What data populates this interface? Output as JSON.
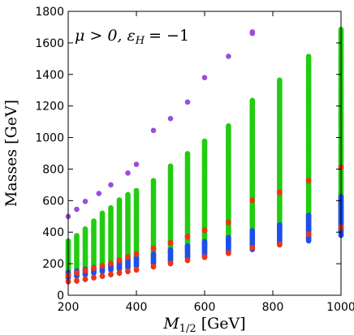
{
  "chart_data": {
    "type": "scatter",
    "title": "",
    "xlabel_main": "M",
    "xlabel_sub": "1/2",
    "xlabel_unit": "[GeV]",
    "ylabel": "Masses [GeV]",
    "annotation": "μ > 0, ε",
    "annotation_sub": "H",
    "annotation_rhs": "= −1",
    "xlim": [
      200,
      1000
    ],
    "ylim": [
      0,
      1800
    ],
    "xticks": [
      200,
      400,
      600,
      800,
      1000
    ],
    "yticks": [
      0,
      200,
      400,
      600,
      800,
      1000,
      1200,
      1400,
      1600,
      1800
    ],
    "grid": false,
    "x_values": [
      200,
      225,
      250,
      275,
      300,
      325,
      350,
      375,
      400,
      450,
      500,
      550,
      600,
      670,
      740,
      820,
      905,
      1000
    ],
    "colors": {
      "purple": "#9b4ddb",
      "green": "#22cc11",
      "blue": "#1f4fe8",
      "red": "#e8361b"
    },
    "series": [
      {
        "name": "",
        "color": "purple",
        "points": [
          [
            200,
            500
          ],
          [
            225,
            545
          ],
          [
            250,
            595
          ],
          [
            290,
            645
          ],
          [
            325,
            700
          ],
          [
            375,
            775
          ],
          [
            400,
            830
          ],
          [
            450,
            1045
          ],
          [
            500,
            1120
          ],
          [
            550,
            1225
          ],
          [
            600,
            1380
          ],
          [
            670,
            1515
          ],
          [
            740,
            1660
          ],
          [
            740,
            1670
          ]
        ]
      }
    ],
    "vertical_bands": [
      {
        "x": 200,
        "green": [
          160,
          350
        ],
        "blue": [
          110,
          150
        ],
        "red": [
          [
            85,
            90
          ],
          [
            125,
            130
          ]
        ]
      },
      {
        "x": 225,
        "green": [
          170,
          380
        ],
        "blue": [
          120,
          160
        ],
        "red": [
          [
            90,
            95
          ],
          [
            140,
            145
          ]
        ]
      },
      {
        "x": 250,
        "green": [
          180,
          420
        ],
        "blue": [
          130,
          170
        ],
        "red": [
          [
            100,
            105
          ],
          [
            155,
            160
          ]
        ]
      },
      {
        "x": 275,
        "green": [
          190,
          470
        ],
        "blue": [
          140,
          180
        ],
        "red": [
          [
            110,
            115
          ],
          [
            170,
            175
          ]
        ]
      },
      {
        "x": 300,
        "green": [
          200,
          520
        ],
        "blue": [
          150,
          190
        ],
        "red": [
          [
            120,
            125
          ],
          [
            185,
            190
          ]
        ]
      },
      {
        "x": 325,
        "green": [
          210,
          560
        ],
        "blue": [
          160,
          200
        ],
        "red": [
          [
            130,
            135
          ],
          [
            200,
            205
          ]
        ]
      },
      {
        "x": 350,
        "green": [
          220,
          610
        ],
        "blue": [
          165,
          215
        ],
        "red": [
          [
            140,
            145
          ],
          [
            220,
            225
          ]
        ]
      },
      {
        "x": 375,
        "green": [
          230,
          640
        ],
        "blue": [
          175,
          225
        ],
        "red": [
          [
            150,
            155
          ],
          [
            240,
            245
          ]
        ]
      },
      {
        "x": 400,
        "green": [
          240,
          670
        ],
        "blue": [
          185,
          240
        ],
        "red": [
          [
            160,
            165
          ],
          [
            260,
            265
          ]
        ]
      },
      {
        "x": 450,
        "green": [
          255,
          730
        ],
        "blue": [
          200,
          265
        ],
        "red": [
          [
            180,
            185
          ],
          [
            295,
            300
          ]
        ]
      },
      {
        "x": 500,
        "green": [
          275,
          820
        ],
        "blue": [
          215,
          290
        ],
        "red": [
          [
            200,
            205
          ],
          [
            330,
            335
          ]
        ]
      },
      {
        "x": 550,
        "green": [
          290,
          900
        ],
        "blue": [
          235,
          315
        ],
        "red": [
          [
            220,
            225
          ],
          [
            370,
            375
          ]
        ]
      },
      {
        "x": 600,
        "green": [
          305,
          980
        ],
        "blue": [
          250,
          340
        ],
        "red": [
          [
            240,
            245
          ],
          [
            410,
            415
          ]
        ]
      },
      {
        "x": 670,
        "green": [
          330,
          1080
        ],
        "blue": [
          270,
          370
        ],
        "red": [
          [
            265,
            270
          ],
          [
            460,
            465
          ]
        ]
      },
      {
        "x": 740,
        "green": [
          355,
          1240
        ],
        "blue": [
          290,
          410
        ],
        "red": [
          [
            300,
            305
          ],
          [
            600,
            605
          ]
        ]
      },
      {
        "x": 820,
        "green": [
          380,
          1370
        ],
        "blue": [
          320,
          450
        ],
        "red": [
          [
            320,
            325
          ],
          [
            650,
            655
          ]
        ]
      },
      {
        "x": 905,
        "green": [
          410,
          1520
        ],
        "blue": [
          345,
          510
        ],
        "red": [
          [
            385,
            390
          ],
          [
            725,
            730
          ]
        ]
      },
      {
        "x": 1000,
        "green": [
          445,
          1690
        ],
        "blue": [
          380,
          630
        ],
        "red": [
          [
            430,
            435
          ],
          [
            810,
            815
          ]
        ]
      }
    ]
  }
}
